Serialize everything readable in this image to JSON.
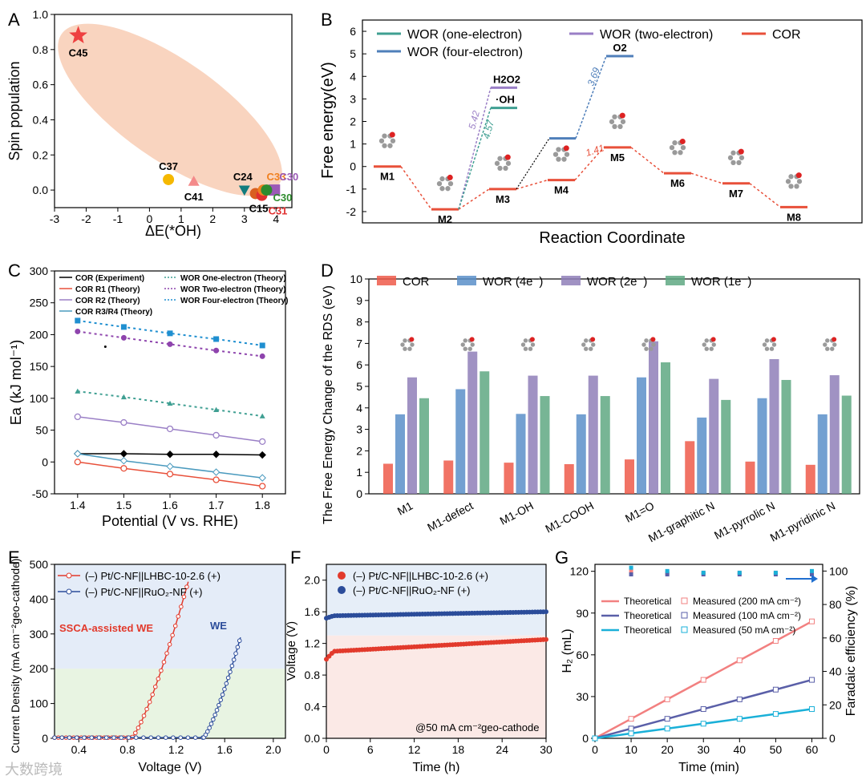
{
  "watermark": "大数跨境",
  "chart_data": [
    {
      "panel": "A",
      "type": "scatter",
      "xlabel": "ΔE(*OH)",
      "ylabel": "Spin population",
      "xlim": [
        -3,
        4.5
      ],
      "ylim": [
        -0.1,
        1.0
      ],
      "xticks": [
        -3,
        -2,
        -1,
        0,
        1,
        2,
        3,
        4
      ],
      "yticks": [
        0.0,
        0.2,
        0.4,
        0.6,
        0.8,
        1.0
      ],
      "colors": {
        "ellipse": "#f8cdb4"
      },
      "points": [
        {
          "label": "C45",
          "x": -2.25,
          "y": 0.88,
          "color": "#ee4040",
          "shape": "star"
        },
        {
          "label": "C37",
          "x": 0.6,
          "y": 0.06,
          "color": "#f5b800",
          "shape": "circle"
        },
        {
          "label": "C41",
          "x": 1.4,
          "y": 0.05,
          "color": "#f48a8a",
          "shape": "triangle"
        },
        {
          "label": "C24",
          "x": 3.0,
          "y": 0.0,
          "color": "#137c7e",
          "shape": "triangle-down"
        },
        {
          "label": "C15",
          "x": 3.35,
          "y": -0.02,
          "color": "#d95f20",
          "shape": "circle"
        },
        {
          "label": "C31",
          "x": 3.55,
          "y": -0.03,
          "color": "#e03030",
          "shape": "circle"
        },
        {
          "label": "C33",
          "x": 3.6,
          "y": 0.0,
          "color": "#f08020",
          "shape": "circle"
        },
        {
          "label": "C30",
          "x": 3.95,
          "y": 0.0,
          "color": "#9b59b6",
          "shape": "square"
        },
        {
          "label": "C30",
          "x": 3.7,
          "y": 0.0,
          "color": "#2e8b2e",
          "shape": "circle"
        }
      ]
    },
    {
      "panel": "B",
      "type": "line",
      "xlabel": "Reaction Coordinate",
      "ylabel": "Free energy(eV)",
      "ylim": [
        -2.5,
        6.5
      ],
      "yticks": [
        -2,
        -1,
        0,
        1,
        2,
        3,
        4,
        5,
        6
      ],
      "legend": [
        "WOR (one-electron)",
        "WOR (two-electron)",
        "COR",
        "WOR (four-electron)"
      ],
      "colors": {
        "one": "#3f9f92",
        "two": "#9a7fc6",
        "four": "#4f7fba",
        "cor": "#e8503a"
      },
      "states": [
        {
          "name": "M1",
          "energy": 0.0
        },
        {
          "name": "M2",
          "energy": -1.9
        },
        {
          "name": "M3",
          "energy": -1.0
        },
        {
          "name": "M4",
          "energy": -0.6
        },
        {
          "name": "M5",
          "energy": 0.85
        },
        {
          "name": "M6",
          "energy": -0.3
        },
        {
          "name": "M7",
          "energy": -0.75
        },
        {
          "name": "M8",
          "energy": -1.8
        }
      ],
      "branches": [
        {
          "label": "H2O2",
          "energy": 3.5
        },
        {
          "label": "·OH",
          "energy": 2.6
        },
        {
          "label": "O2",
          "energy": 4.9
        },
        {
          "label": "M4 four-electron",
          "energy": 1.25
        }
      ],
      "annotations": [
        "5.42",
        "4.57",
        "3.69",
        "1.41"
      ]
    },
    {
      "panel": "C",
      "type": "line",
      "xlabel": "Potential (V vs. RHE)",
      "ylabel": "Ea (kJ mol⁻¹)",
      "xlim": [
        1.35,
        1.85
      ],
      "ylim": [
        -50,
        300
      ],
      "xticks": [
        1.4,
        1.5,
        1.6,
        1.7,
        1.8
      ],
      "yticks": [
        -50,
        0,
        50,
        100,
        150,
        200,
        250,
        300
      ],
      "x": [
        1.4,
        1.5,
        1.6,
        1.7,
        1.8
      ],
      "series": [
        {
          "name": "COR (Experiment)",
          "values": [
            13,
            13,
            12,
            12,
            11
          ],
          "color": "#000000",
          "dash": false
        },
        {
          "name": "COR R1 (Theory)",
          "values": [
            0,
            -10,
            -19,
            -28,
            -38
          ],
          "color": "#e8503a",
          "dash": false
        },
        {
          "name": "COR R2 (Theory)",
          "values": [
            71,
            62,
            52,
            42,
            32
          ],
          "color": "#9a7fc6",
          "dash": false
        },
        {
          "name": "COR R3/R4 (Theory)",
          "values": [
            13,
            2,
            -7,
            -16,
            -25
          ],
          "color": "#4a9abe",
          "dash": false
        },
        {
          "name": "WOR One-electron (Theory)",
          "values": [
            111,
            102,
            92,
            82,
            72
          ],
          "color": "#3f9f92",
          "dash": true
        },
        {
          "name": "WOR Two-electron (Theory)",
          "values": [
            205,
            195,
            185,
            175,
            166
          ],
          "color": "#8e44ad",
          "dash": true
        },
        {
          "name": "WOR Four-electron (Theory)",
          "values": [
            222,
            212,
            202,
            193,
            183
          ],
          "color": "#1f8fd0",
          "dash": true
        }
      ],
      "stray_point": {
        "x": 1.46,
        "y": 181
      }
    },
    {
      "panel": "D",
      "type": "bar",
      "ylabel": "The Free Energy Change of the RDS (eV)",
      "ylim": [
        0,
        10
      ],
      "yticks": [
        0,
        1,
        2,
        3,
        4,
        5,
        6,
        7,
        8,
        9,
        10
      ],
      "categories": [
        "M1",
        "M1-defect",
        "M1-OH",
        "M1-COOH",
        "M1=O",
        "M1-graphitic N",
        "M1-pyrrolic N",
        "M1-pyridinic N"
      ],
      "series": [
        {
          "name": "COR",
          "values": [
            1.4,
            1.55,
            1.45,
            1.38,
            1.6,
            2.45,
            1.5,
            1.35
          ],
          "color": "#ee5a4a"
        },
        {
          "name": "WOR (4e⁻)",
          "values": [
            3.7,
            4.87,
            3.72,
            3.7,
            5.42,
            3.55,
            4.45,
            3.7
          ],
          "color": "#5b8fc9"
        },
        {
          "name": "WOR (2e⁻)",
          "values": [
            5.42,
            6.62,
            5.5,
            5.5,
            7.1,
            5.35,
            6.27,
            5.52
          ],
          "color": "#8f7fb8"
        },
        {
          "name": "WOR (1e⁻)",
          "values": [
            4.45,
            5.7,
            4.55,
            4.55,
            6.12,
            4.37,
            5.3,
            4.57
          ],
          "color": "#5fa882"
        }
      ]
    },
    {
      "panel": "E",
      "type": "line",
      "xlabel": "Voltage (V)",
      "ylabel": "Current Density (mA cm⁻²geo-cathode)",
      "xlim": [
        0.2,
        2.1
      ],
      "ylim": [
        0,
        500
      ],
      "xticks": [
        0.4,
        0.8,
        1.2,
        1.6,
        2.0
      ],
      "yticks": [
        0,
        100,
        200,
        300,
        400,
        500
      ],
      "series": [
        {
          "name": "(–) Pt/C-NF||LHBC-10-2.6 (+)",
          "onset": 0.83,
          "end_x": 1.3,
          "end_y": 450,
          "color": "#e23a2c"
        },
        {
          "name": "(–) Pt/C-NF||RuO₂-NF (+)",
          "onset": 1.42,
          "end_x": 1.73,
          "end_y": 290,
          "color": "#2b4c9a"
        }
      ],
      "annotations": [
        "SSCA-assisted WE",
        "WE"
      ]
    },
    {
      "panel": "F",
      "type": "line",
      "xlabel": "Time (h)",
      "ylabel": "Voltage (V)",
      "xlim": [
        0,
        30
      ],
      "ylim": [
        0,
        2.2
      ],
      "xticks": [
        0,
        6,
        12,
        18,
        24,
        30
      ],
      "yticks": [
        0.0,
        0.4,
        0.8,
        1.2,
        1.6,
        2.0
      ],
      "series": [
        {
          "name": "(–) Pt/C-NF||LHBC-10-2.6 (+)",
          "start": 1.0,
          "plateau": 1.1,
          "end": 1.25,
          "color": "#e23a2c"
        },
        {
          "name": "(–) Pt/C-NF||RuO₂-NF (+)",
          "start": 1.52,
          "plateau": 1.55,
          "end": 1.6,
          "color": "#2b4c9a"
        }
      ],
      "annotation": "@50 mA cm⁻²geo-cathode"
    },
    {
      "panel": "G",
      "type": "line",
      "xlabel": "Time (min)",
      "ylabel": "H₂ (mL)",
      "y2label": "Faradaic efficiency (%)",
      "xlim": [
        0,
        63
      ],
      "ylim": [
        0,
        125
      ],
      "y2lim": [
        0,
        104
      ],
      "xticks": [
        0,
        10,
        20,
        30,
        40,
        50,
        60
      ],
      "yticks": [
        0,
        30,
        60,
        90,
        120
      ],
      "y2ticks": [
        0,
        20,
        40,
        60,
        80,
        100
      ],
      "x": [
        0,
        10,
        20,
        30,
        40,
        50,
        60
      ],
      "series": [
        {
          "name": "Theoretical / Measured (200 mA cm⁻²)",
          "values": [
            0,
            14,
            28,
            42,
            56,
            70,
            84
          ],
          "fe": [
            100,
            99,
            99,
            99,
            99,
            99
          ],
          "color": "#f28080"
        },
        {
          "name": "Theoretical / Measured (100 mA cm⁻²)",
          "values": [
            0,
            7,
            14,
            21,
            28,
            35,
            42
          ],
          "fe": [
            98,
            98,
            98,
            98,
            98,
            98
          ],
          "color": "#5a5fa8"
        },
        {
          "name": "Theoretical / Measured (50 mA cm⁻²)",
          "values": [
            0,
            3.5,
            7,
            10.5,
            14,
            17.5,
            21
          ],
          "fe": [
            102,
            100,
            99,
            99,
            99,
            100
          ],
          "color": "#1ab0d8"
        }
      ]
    }
  ]
}
